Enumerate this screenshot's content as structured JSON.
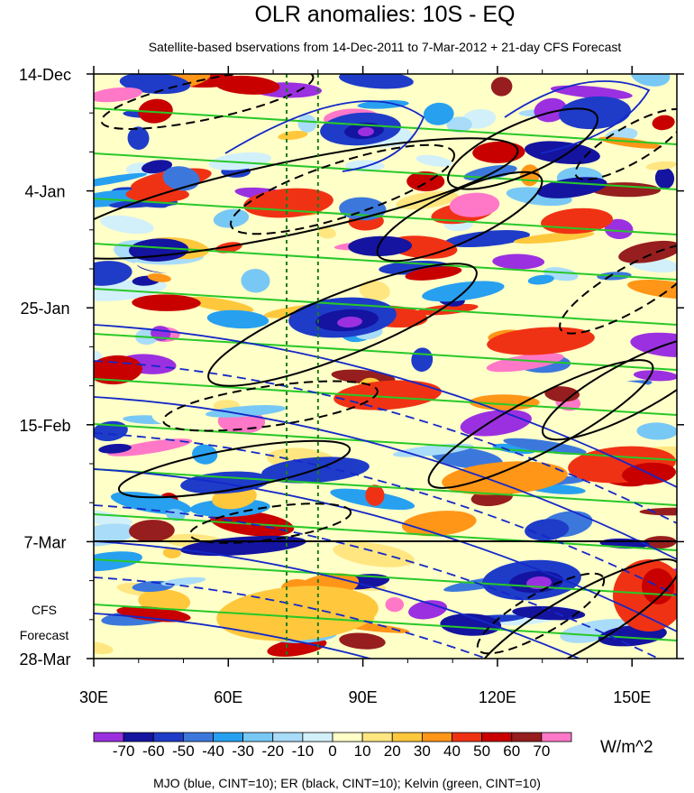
{
  "chart_data": {
    "type": "heatmap",
    "title": "OLR anomalies: 10S - EQ",
    "subtitle": "Satellite-based bservations from 14-Dec-2011 to 7-Mar-2012 + 21-day CFS Forecast",
    "x_ticks": [
      {
        "label": "30E",
        "value": 30
      },
      {
        "label": "60E",
        "value": 60
      },
      {
        "label": "90E",
        "value": 90
      },
      {
        "label": "120E",
        "value": 120
      },
      {
        "label": "150E",
        "value": 150
      }
    ],
    "xlim": [
      30,
      160
    ],
    "y_ticks": [
      {
        "label": "14-Dec",
        "day": 0
      },
      {
        "label": "4-Jan",
        "day": 21
      },
      {
        "label": "25-Jan",
        "day": 42
      },
      {
        "label": "15-Feb",
        "day": 63
      },
      {
        "label": "7-Mar",
        "day": 84
      },
      {
        "label": "28-Mar",
        "day": 105
      }
    ],
    "forecast_start": "7-Mar",
    "forecast_label": [
      "CFS",
      "Forecast"
    ],
    "reference_lines_lon": [
      73,
      80
    ],
    "colorbar": {
      "unit": "W/m^2",
      "levels": [
        -70,
        -60,
        -50,
        -40,
        -30,
        -20,
        -10,
        0,
        10,
        20,
        30,
        40,
        50,
        60,
        70
      ],
      "labels": [
        "-70",
        "-60",
        "-50",
        "-40",
        "-30",
        "-20",
        "-10",
        "0",
        "10",
        "20",
        "30",
        "40",
        "50",
        "60",
        "70"
      ],
      "colors": [
        "#9b30e0",
        "#1414a0",
        "#1e3cc8",
        "#3c78dc",
        "#28a0f0",
        "#78c8f5",
        "#a8dcf8",
        "#d2f0fa",
        "#ffffc8",
        "#ffe680",
        "#ffc83c",
        "#ff9618",
        "#f03214",
        "#c80000",
        "#961e1e",
        "#ff78c8"
      ]
    },
    "overlays": {
      "MJO": "#1428c8",
      "ER": "#000000",
      "Kelvin": "#28c828"
    },
    "footnote": "MJO (blue, CINT=10); ER (black, CINT=10); Kelvin (green, CINT=10)"
  }
}
